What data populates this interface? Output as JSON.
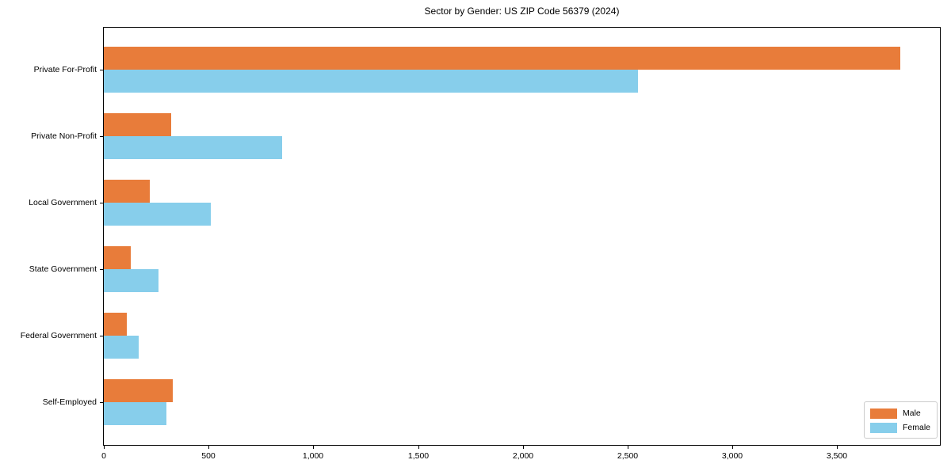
{
  "title": "Sector by Gender: US ZIP Code 56379 (2024)",
  "chart_data": {
    "type": "bar",
    "orientation": "horizontal",
    "title": "Sector by Gender: US ZIP Code 56379 (2024)",
    "categories": [
      "Private For-Profit",
      "Private Non-Profit",
      "Local Government",
      "State Government",
      "Federal Government",
      "Self-Employed"
    ],
    "series": [
      {
        "name": "Male",
        "color": "#e87c3a",
        "values": [
          3800,
          320,
          220,
          130,
          110,
          330
        ]
      },
      {
        "name": "Female",
        "color": "#87ceeb",
        "values": [
          2550,
          850,
          510,
          260,
          165,
          300
        ]
      }
    ],
    "xlabel": "",
    "ylabel": "",
    "xlim": [
      0,
      3990
    ],
    "xticks": [
      0,
      500,
      1000,
      1500,
      2000,
      2500,
      3000,
      3500
    ],
    "xtick_labels": [
      "0",
      "500",
      "1,000",
      "1,500",
      "2,000",
      "2,500",
      "3,000",
      "3,500"
    ],
    "grid": false,
    "legend": {
      "position": "lower right",
      "entries": [
        "Male",
        "Female"
      ]
    }
  }
}
